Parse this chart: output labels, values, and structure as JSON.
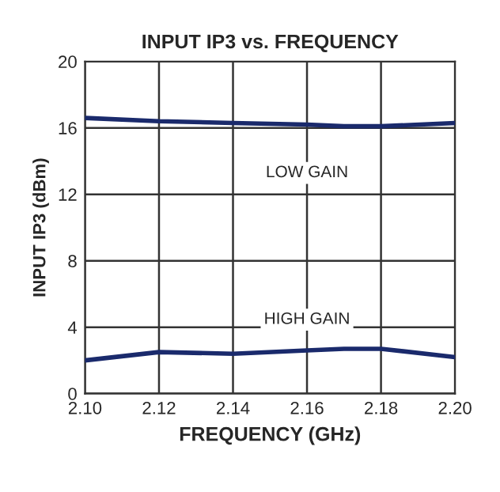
{
  "chart_data": {
    "type": "line",
    "title": "INPUT IP3 vs. FREQUENCY",
    "xlabel": "FREQUENCY (GHz)",
    "ylabel": "INPUT IP3 (dBm)",
    "x": [
      2.1,
      2.12,
      2.14,
      2.16,
      2.17,
      2.18,
      2.2
    ],
    "series": [
      {
        "name": "LOW GAIN",
        "color": "#1a2a6c",
        "values": [
          16.6,
          16.4,
          16.3,
          16.2,
          16.1,
          16.1,
          16.3
        ]
      },
      {
        "name": "HIGH GAIN",
        "color": "#1a2a6c",
        "values": [
          2.0,
          2.5,
          2.4,
          2.6,
          2.7,
          2.7,
          2.2
        ]
      }
    ],
    "xlim": [
      2.1,
      2.2
    ],
    "xticks": [
      {
        "value": 2.1,
        "label": "2.10"
      },
      {
        "value": 2.12,
        "label": "2.12"
      },
      {
        "value": 2.14,
        "label": "2.14"
      },
      {
        "value": 2.16,
        "label": "2.16"
      },
      {
        "value": 2.18,
        "label": "2.18"
      },
      {
        "value": 2.2,
        "label": "2.20"
      }
    ],
    "ylim": [
      0,
      20
    ],
    "yticks": [
      0,
      4,
      8,
      12,
      16,
      20
    ],
    "grid": true,
    "marker": "none",
    "line_style": "solid"
  }
}
